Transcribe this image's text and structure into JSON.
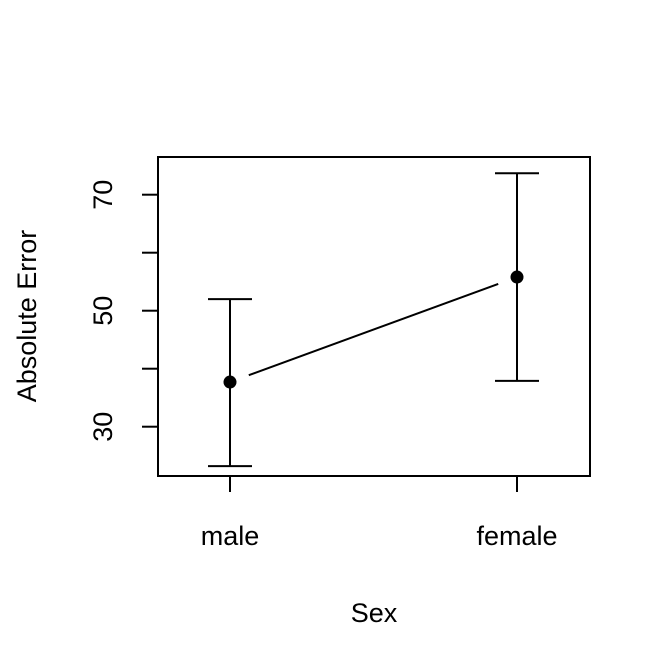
{
  "chart_data": {
    "type": "line",
    "title": "",
    "xlabel": "Sex",
    "ylabel": "Absolute Error",
    "categories": [
      "male",
      "female"
    ],
    "series": [
      {
        "values": [
          37.7,
          55.8
        ],
        "error_low": [
          23.2,
          37.9
        ],
        "error_high": [
          52.0,
          73.7
        ]
      }
    ],
    "ylim": [
      21.5,
      76.5
    ],
    "y_ticks": [
      30,
      40,
      50,
      60,
      70
    ],
    "y_tick_labels": [
      "30",
      "",
      "50",
      "",
      "70"
    ],
    "grid": false,
    "legend": "none",
    "colors": {
      "ink": "#000000",
      "background": "#ffffff"
    }
  }
}
